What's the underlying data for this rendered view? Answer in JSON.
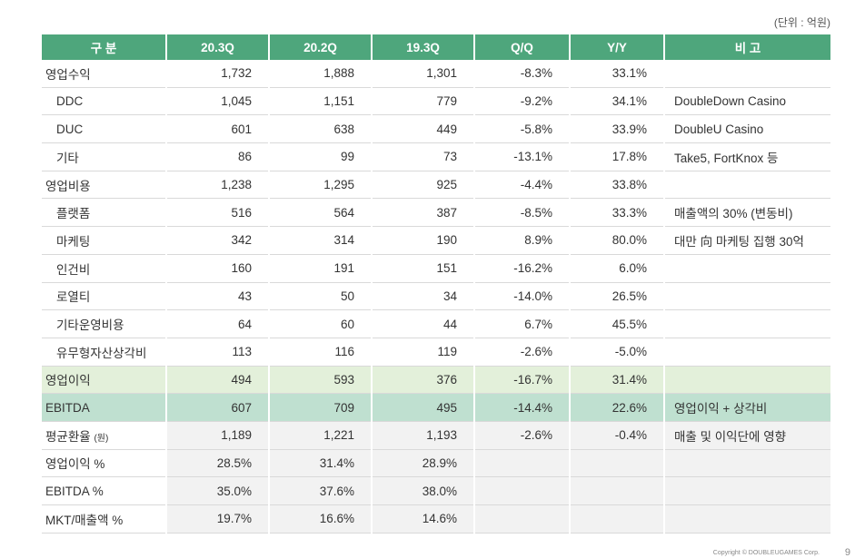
{
  "unit": "(단위 : 억원)",
  "columns": [
    "구 분",
    "20.3Q",
    "20.2Q",
    "19.3Q",
    "Q/Q",
    "Y/Y",
    "비 고"
  ],
  "rows": [
    {
      "label": "영업수익",
      "values": [
        "1,732",
        "1,888",
        "1,301",
        "-8.3%",
        "33.1%"
      ],
      "note": ""
    },
    {
      "label": "DDC",
      "values": [
        "1,045",
        "1,151",
        "779",
        "-9.2%",
        "34.1%"
      ],
      "note": "DoubleDown Casino"
    },
    {
      "label": "DUC",
      "values": [
        "601",
        "638",
        "449",
        "-5.8%",
        "33.9%"
      ],
      "note": "DoubleU Casino"
    },
    {
      "label": "기타",
      "values": [
        "86",
        "99",
        "73",
        "-13.1%",
        "17.8%"
      ],
      "note": "Take5, FortKnox 등"
    },
    {
      "label": "영업비용",
      "values": [
        "1,238",
        "1,295",
        "925",
        "-4.4%",
        "33.8%"
      ],
      "note": ""
    },
    {
      "label": "플랫폼",
      "values": [
        "516",
        "564",
        "387",
        "-8.5%",
        "33.3%"
      ],
      "note": "매출액의 30% (변동비)"
    },
    {
      "label": "마케팅",
      "values": [
        "342",
        "314",
        "190",
        "8.9%",
        "80.0%"
      ],
      "note": "대만 向 마케팅 집행 30억"
    },
    {
      "label": "인건비",
      "values": [
        "160",
        "191",
        "151",
        "-16.2%",
        "6.0%"
      ],
      "note": ""
    },
    {
      "label": "로열티",
      "values": [
        "43",
        "50",
        "34",
        "-14.0%",
        "26.5%"
      ],
      "note": ""
    },
    {
      "label": "기타운영비용",
      "values": [
        "64",
        "60",
        "44",
        "6.7%",
        "45.5%"
      ],
      "note": ""
    },
    {
      "label": "유무형자산상각비",
      "values": [
        "113",
        "116",
        "119",
        "-2.6%",
        "-5.0%"
      ],
      "note": ""
    },
    {
      "label": "영업이익",
      "values": [
        "494",
        "593",
        "376",
        "-16.7%",
        "31.4%"
      ],
      "note": ""
    },
    {
      "label": "EBITDA",
      "values": [
        "607",
        "709",
        "495",
        "-14.4%",
        "22.6%"
      ],
      "note": "영업이익 + 상각비"
    },
    {
      "label": "평균환율",
      "label_suffix": "(원)",
      "values": [
        "1,189",
        "1,221",
        "1,193",
        "-2.6%",
        "-0.4%"
      ],
      "note": "매출 및 이익단에 영향"
    },
    {
      "label": "영업이익 %",
      "values": [
        "28.5%",
        "31.4%",
        "28.9%",
        "",
        ""
      ],
      "note": ""
    },
    {
      "label": "EBITDA %",
      "values": [
        "35.0%",
        "37.6%",
        "38.0%",
        "",
        ""
      ],
      "note": ""
    },
    {
      "label": "MKT/매출액 %",
      "values": [
        "19.7%",
        "16.6%",
        "14.6%",
        "",
        ""
      ],
      "note": ""
    }
  ],
  "footer": "Copyright © DOUBLEUGAMES Corp.",
  "page_number": "9"
}
